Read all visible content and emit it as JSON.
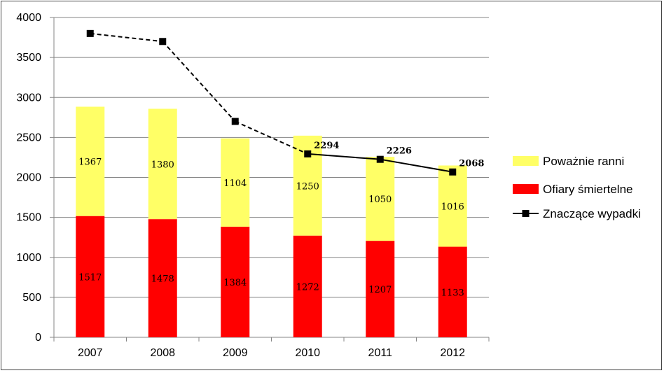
{
  "chart_data": {
    "type": "bar",
    "stacked": true,
    "categories": [
      "2007",
      "2008",
      "2009",
      "2010",
      "2011",
      "2012"
    ],
    "ylim": [
      0,
      4000
    ],
    "yticks": [
      0,
      500,
      1000,
      1500,
      2000,
      2500,
      3000,
      3500,
      4000
    ],
    "grid": true,
    "legend_position": "right",
    "series": [
      {
        "name": "Ofiary śmiertelne",
        "kind": "bar",
        "color": "#ff0000",
        "values": [
          1517,
          1478,
          1384,
          1272,
          1207,
          1133
        ]
      },
      {
        "name": "Poważnie ranni",
        "kind": "bar",
        "color": "#ffff66",
        "values": [
          1367,
          1380,
          1104,
          1250,
          1050,
          1016
        ]
      },
      {
        "name": "Znaczące wypadki",
        "kind": "line",
        "color": "#000000",
        "marker": "square",
        "values": [
          3800,
          3700,
          2700,
          2294,
          2226,
          2068
        ],
        "labels": [
          "",
          "",
          "",
          "2294",
          "2226",
          "2068"
        ]
      }
    ],
    "legend_order": [
      1,
      0,
      2
    ]
  }
}
